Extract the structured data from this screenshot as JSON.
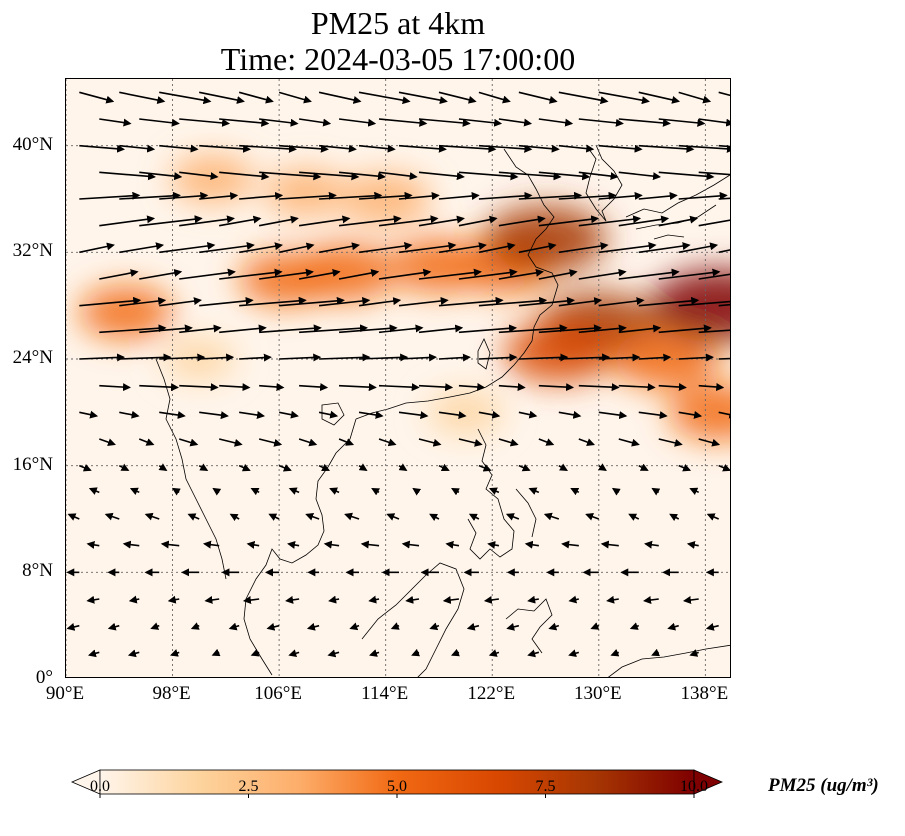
{
  "title": {
    "line1": "PM25 at 4km",
    "line2": "Time: 2024-03-05 17:00:00"
  },
  "map": {
    "extent": {
      "lon_min": 90,
      "lon_max": 140,
      "lat_min": 0,
      "lat_max": 45
    },
    "gridlines": true,
    "x_ticks": [
      {
        "lon": 90,
        "label": "90°E"
      },
      {
        "lon": 98,
        "label": "98°E"
      },
      {
        "lon": 106,
        "label": "106°E"
      },
      {
        "lon": 114,
        "label": "114°E"
      },
      {
        "lon": 122,
        "label": "122°E"
      },
      {
        "lon": 130,
        "label": "130°E"
      },
      {
        "lon": 138,
        "label": "138°E"
      }
    ],
    "y_ticks": [
      {
        "lat": 0,
        "label": "0°"
      },
      {
        "lat": 8,
        "label": "8°N"
      },
      {
        "lat": 16,
        "label": "16°N"
      },
      {
        "lat": 24,
        "label": "24°N"
      },
      {
        "lat": 32,
        "label": "32°N"
      },
      {
        "lat": 40,
        "label": "40°N"
      }
    ]
  },
  "colorbar": {
    "label": "PM25 (ug/m³)",
    "min": 0,
    "max": 10,
    "extend": "both",
    "colors": [
      "#fff5eb",
      "#fdd49e",
      "#fdae6b",
      "#f16913",
      "#d94801",
      "#a63603",
      "#7f0000"
    ],
    "ticks": [
      {
        "value": 0,
        "label": "0.0"
      },
      {
        "value": 2.5,
        "label": "2.5"
      },
      {
        "value": 5,
        "label": "5.0"
      },
      {
        "value": 7.5,
        "label": "7.5"
      },
      {
        "value": 10,
        "label": "10.0"
      }
    ]
  },
  "plumes": [
    {
      "lon": 108,
      "lat": 36.5,
      "value": 2.8
    },
    {
      "lon": 114,
      "lat": 36,
      "value": 3.8
    },
    {
      "lon": 111,
      "lat": 30.5,
      "value": 5.2
    },
    {
      "lon": 106.5,
      "lat": 30,
      "value": 4.2
    },
    {
      "lon": 118,
      "lat": 31,
      "value": 4.6
    },
    {
      "lon": 123,
      "lat": 31,
      "value": 5.0
    },
    {
      "lon": 126,
      "lat": 33,
      "value": 7.8
    },
    {
      "lon": 130,
      "lat": 26.5,
      "value": 7.6
    },
    {
      "lon": 127,
      "lat": 24.5,
      "value": 6.2
    },
    {
      "lon": 135,
      "lat": 24,
      "value": 5.6
    },
    {
      "lon": 139,
      "lat": 28,
      "value": 9.5
    },
    {
      "lon": 139,
      "lat": 20,
      "value": 5.0
    },
    {
      "lon": 94.5,
      "lat": 27.5,
      "value": 4.2
    },
    {
      "lon": 101,
      "lat": 37.5,
      "value": 3.0
    },
    {
      "lon": 120,
      "lat": 20,
      "value": 2.0
    },
    {
      "lon": 100,
      "lat": 24,
      "value": 1.5
    }
  ],
  "wind_field": {
    "rows": [
      {
        "lat": 44,
        "u": 4.5,
        "v": -1.0
      },
      {
        "lat": 42,
        "u": 4.5,
        "v": -0.5
      },
      {
        "lat": 40,
        "u": 5.0,
        "v": -0.4
      },
      {
        "lat": 38,
        "u": 5.5,
        "v": -0.5
      },
      {
        "lat": 36,
        "u": 5.5,
        "v": 0.4
      },
      {
        "lat": 34,
        "u": 5.5,
        "v": 0.8
      },
      {
        "lat": 32,
        "u": 5.0,
        "v": 0.8
      },
      {
        "lat": 30,
        "u": 5.5,
        "v": 0.8
      },
      {
        "lat": 28,
        "u": 6.0,
        "v": 0.6
      },
      {
        "lat": 26,
        "u": 6.0,
        "v": 0.5
      },
      {
        "lat": 24,
        "u": 4.5,
        "v": 0.2
      },
      {
        "lat": 22,
        "u": 3.5,
        "v": -0.2
      },
      {
        "lat": 20,
        "u": 2.5,
        "v": -0.4
      },
      {
        "lat": 18,
        "u": 2.0,
        "v": -0.6
      },
      {
        "lat": 16,
        "u": 1.0,
        "v": -0.5
      },
      {
        "lat": 14,
        "u": -0.8,
        "v": 0.4
      },
      {
        "lat": 12,
        "u": -1.2,
        "v": 0.5
      },
      {
        "lat": 10,
        "u": -1.5,
        "v": 0.2
      },
      {
        "lat": 8,
        "u": -1.5,
        "v": 0
      },
      {
        "lat": 6,
        "u": -1.3,
        "v": -0.2
      },
      {
        "lat": 4,
        "u": -1.0,
        "v": -0.3
      },
      {
        "lat": 2,
        "u": -0.9,
        "v": -0.3
      }
    ],
    "lon_step": 3
  }
}
